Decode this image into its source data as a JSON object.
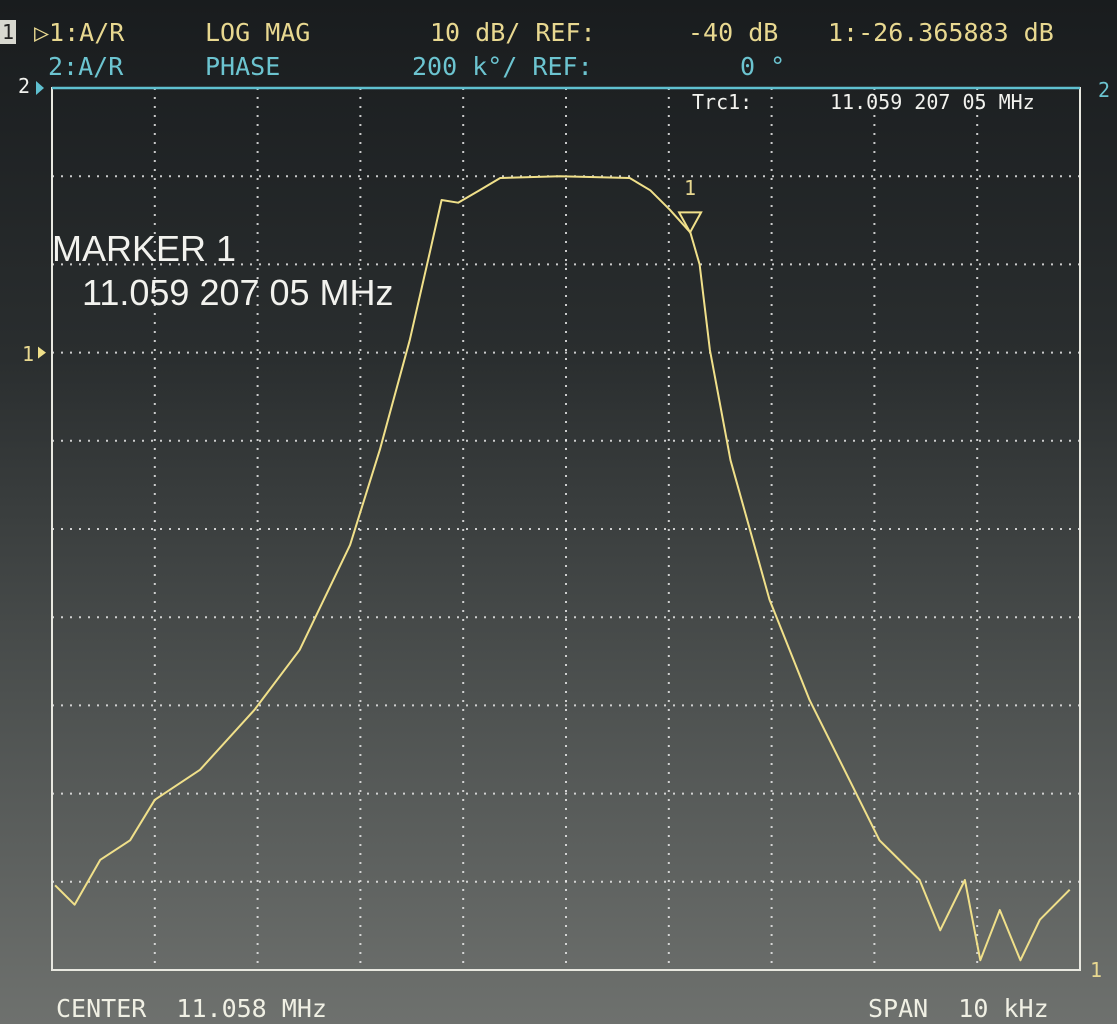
{
  "header": {
    "channel_badge": "1",
    "trace1": {
      "label": "▷1:A/R",
      "format": "LOG MAG",
      "scale": "10 dB/ REF:",
      "ref": "-40 dB",
      "marker_readout": "1:-26.365883 dB"
    },
    "trace2": {
      "label": "2:A/R",
      "format": "PHASE",
      "scale": "200 k°/ REF:",
      "ref": "0 °"
    }
  },
  "trc_readout": {
    "label": "Trc1:",
    "value": "11.059 207 05 MHz"
  },
  "marker_box": {
    "title": "MARKER 1",
    "value": "11.059 207 05 MHz"
  },
  "marker_label": "1",
  "ref_markers": {
    "left_trace2": "2",
    "left_trace1": "1",
    "right_trace2": "2",
    "right_trace1": "1"
  },
  "footer": {
    "center": "CENTER  11.058 MHz",
    "span": "SPAN  10 kHz"
  },
  "colors": {
    "trace1": "#f0e08a",
    "trace2": "#5fc0d0",
    "grid": "#e8e8e8"
  },
  "chart_data": {
    "type": "line",
    "x_unit": "MHz",
    "y_unit": "dB",
    "xlim": [
      11.053,
      11.063
    ],
    "ylim": [
      -110,
      -10
    ],
    "x_divisions": 10,
    "y_divisions": 10,
    "reference_level_db": -40,
    "grid": true,
    "marker": {
      "x": 11.05920705,
      "y": -26.365883
    },
    "series": [
      {
        "x": [
          11.05303,
          11.05322,
          11.05347,
          11.05376,
          11.054,
          11.05444,
          11.05497,
          11.05541,
          11.0559,
          11.05619,
          11.05648,
          11.05668,
          11.05679,
          11.05695,
          11.05716,
          11.05736,
          11.05794,
          11.05862,
          11.05882,
          11.05901,
          11.05921,
          11.0593,
          11.0594,
          11.0596,
          11.05998,
          11.06037,
          11.06076,
          11.06105,
          11.06144,
          11.06164,
          11.06188,
          11.06203,
          11.06222,
          11.06242,
          11.06261,
          11.0629
        ],
        "y": [
          -100.4,
          -102.6,
          -97.5,
          -95.3,
          -90.7,
          -87.3,
          -80.5,
          -73.7,
          -61.8,
          -51.0,
          -38.6,
          -28.4,
          -22.7,
          -23.0,
          -21.6,
          -20.2,
          -20.0,
          -20.2,
          -21.6,
          -23.8,
          -26.4,
          -30.0,
          -39.7,
          -52.2,
          -68.0,
          -79.4,
          -88.5,
          -95.3,
          -99.8,
          -105.5,
          -99.8,
          -108.9,
          -103.2,
          -108.9,
          -104.3,
          -100.9
        ]
      }
    ]
  }
}
